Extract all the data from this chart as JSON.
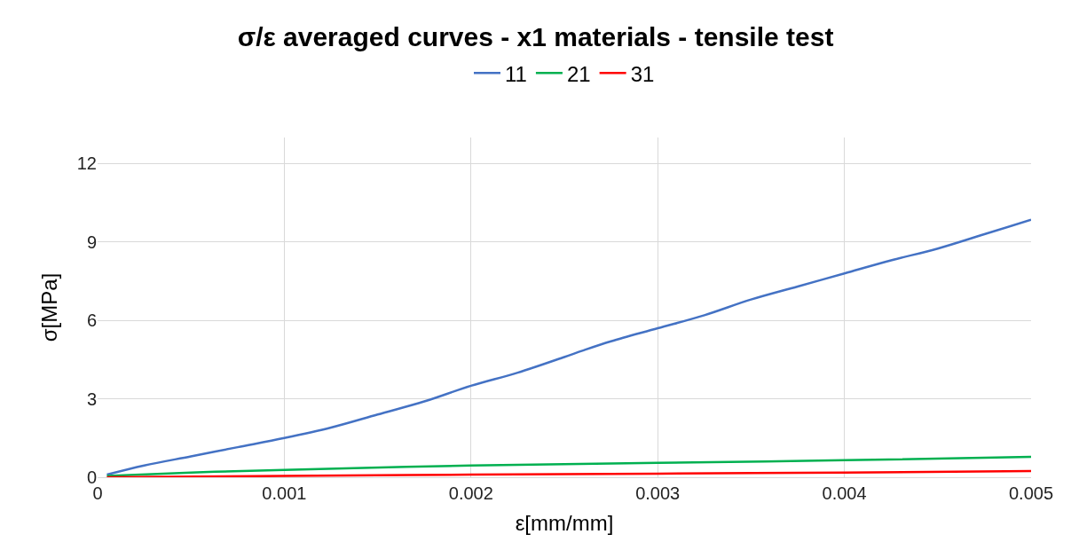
{
  "chart_data": {
    "type": "line",
    "title": "σ/ε averaged curves - x1 materials - tensile test",
    "xlabel": "ε[mm/mm]",
    "ylabel": "σ[MPa]",
    "xlim": [
      0,
      0.005
    ],
    "xticks": [
      0,
      0.001,
      0.002,
      0.003,
      0.004,
      0.005
    ],
    "ylim": [
      0,
      13
    ],
    "yticks": [
      0,
      3,
      6,
      9,
      12
    ],
    "grid": true,
    "legend": "top",
    "marker": "none",
    "line_style": "solid",
    "series": [
      {
        "name": "11",
        "color": "#4472c4",
        "x": [
          5e-05,
          0.00025,
          0.0005,
          0.00075,
          0.001,
          0.00125,
          0.0015,
          0.00175,
          0.002,
          0.00225,
          0.0025,
          0.0026,
          0.00275,
          0.003,
          0.00325,
          0.0035,
          0.00375,
          0.004,
          0.00425,
          0.0045,
          0.00475,
          0.005
        ],
        "values": [
          0.1,
          0.45,
          0.8,
          1.15,
          1.5,
          1.9,
          2.4,
          2.9,
          3.5,
          4.0,
          4.6,
          4.85,
          5.2,
          5.7,
          6.2,
          6.8,
          7.3,
          7.8,
          8.3,
          8.75,
          9.3,
          9.85
        ]
      },
      {
        "name": "21",
        "color": "#00b050",
        "x": [
          5e-05,
          0.0005,
          0.001,
          0.002,
          0.003,
          0.004,
          0.005
        ],
        "values": [
          0.05,
          0.18,
          0.28,
          0.45,
          0.55,
          0.65,
          0.78
        ]
      },
      {
        "name": "31",
        "color": "#ff0000",
        "x": [
          5e-05,
          0.001,
          0.002,
          0.003,
          0.004,
          0.005
        ],
        "values": [
          0,
          0.05,
          0.1,
          0.14,
          0.18,
          0.24
        ]
      }
    ]
  }
}
